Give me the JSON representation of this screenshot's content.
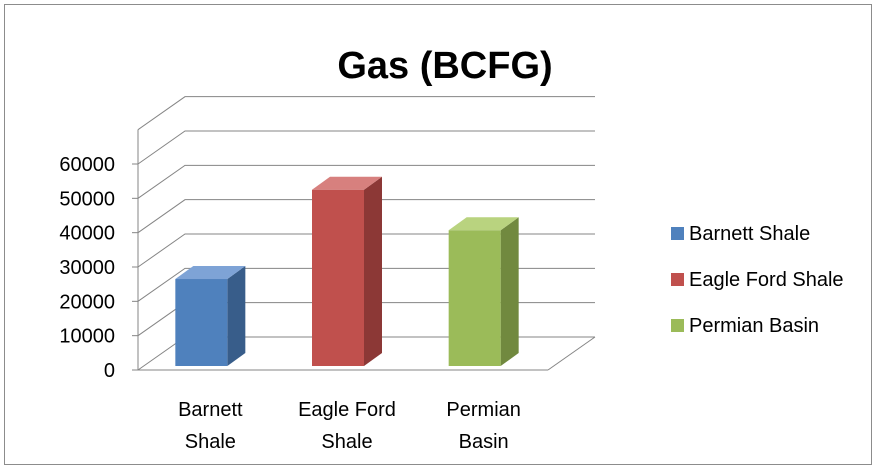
{
  "chart_data": {
    "type": "bar",
    "title": "Gas (BCFG)",
    "categories": [
      "Barnett\nShale",
      "Eagle Ford\nShale",
      "Permian\nBasin"
    ],
    "values": [
      26500,
      52500,
      40700
    ],
    "ylim": [
      0,
      60000
    ],
    "yticks": [
      0,
      10000,
      20000,
      30000,
      40000,
      50000,
      60000
    ],
    "ytick_labels": [
      "0",
      "10000",
      "20000",
      "30000",
      "40000",
      "50000",
      "60000"
    ],
    "grid": true,
    "legend": {
      "position": "right",
      "entries": [
        "Barnett Shale",
        "Eagle Ford Shale",
        "Permian Basin"
      ]
    },
    "colors": {
      "front": [
        "#4f81bd",
        "#c0504d",
        "#9bbb59"
      ],
      "side": [
        "#385d8a",
        "#8c3836",
        "#71893f"
      ],
      "top": [
        "#7ea3d6",
        "#d7807e",
        "#b9d37f"
      ]
    }
  }
}
